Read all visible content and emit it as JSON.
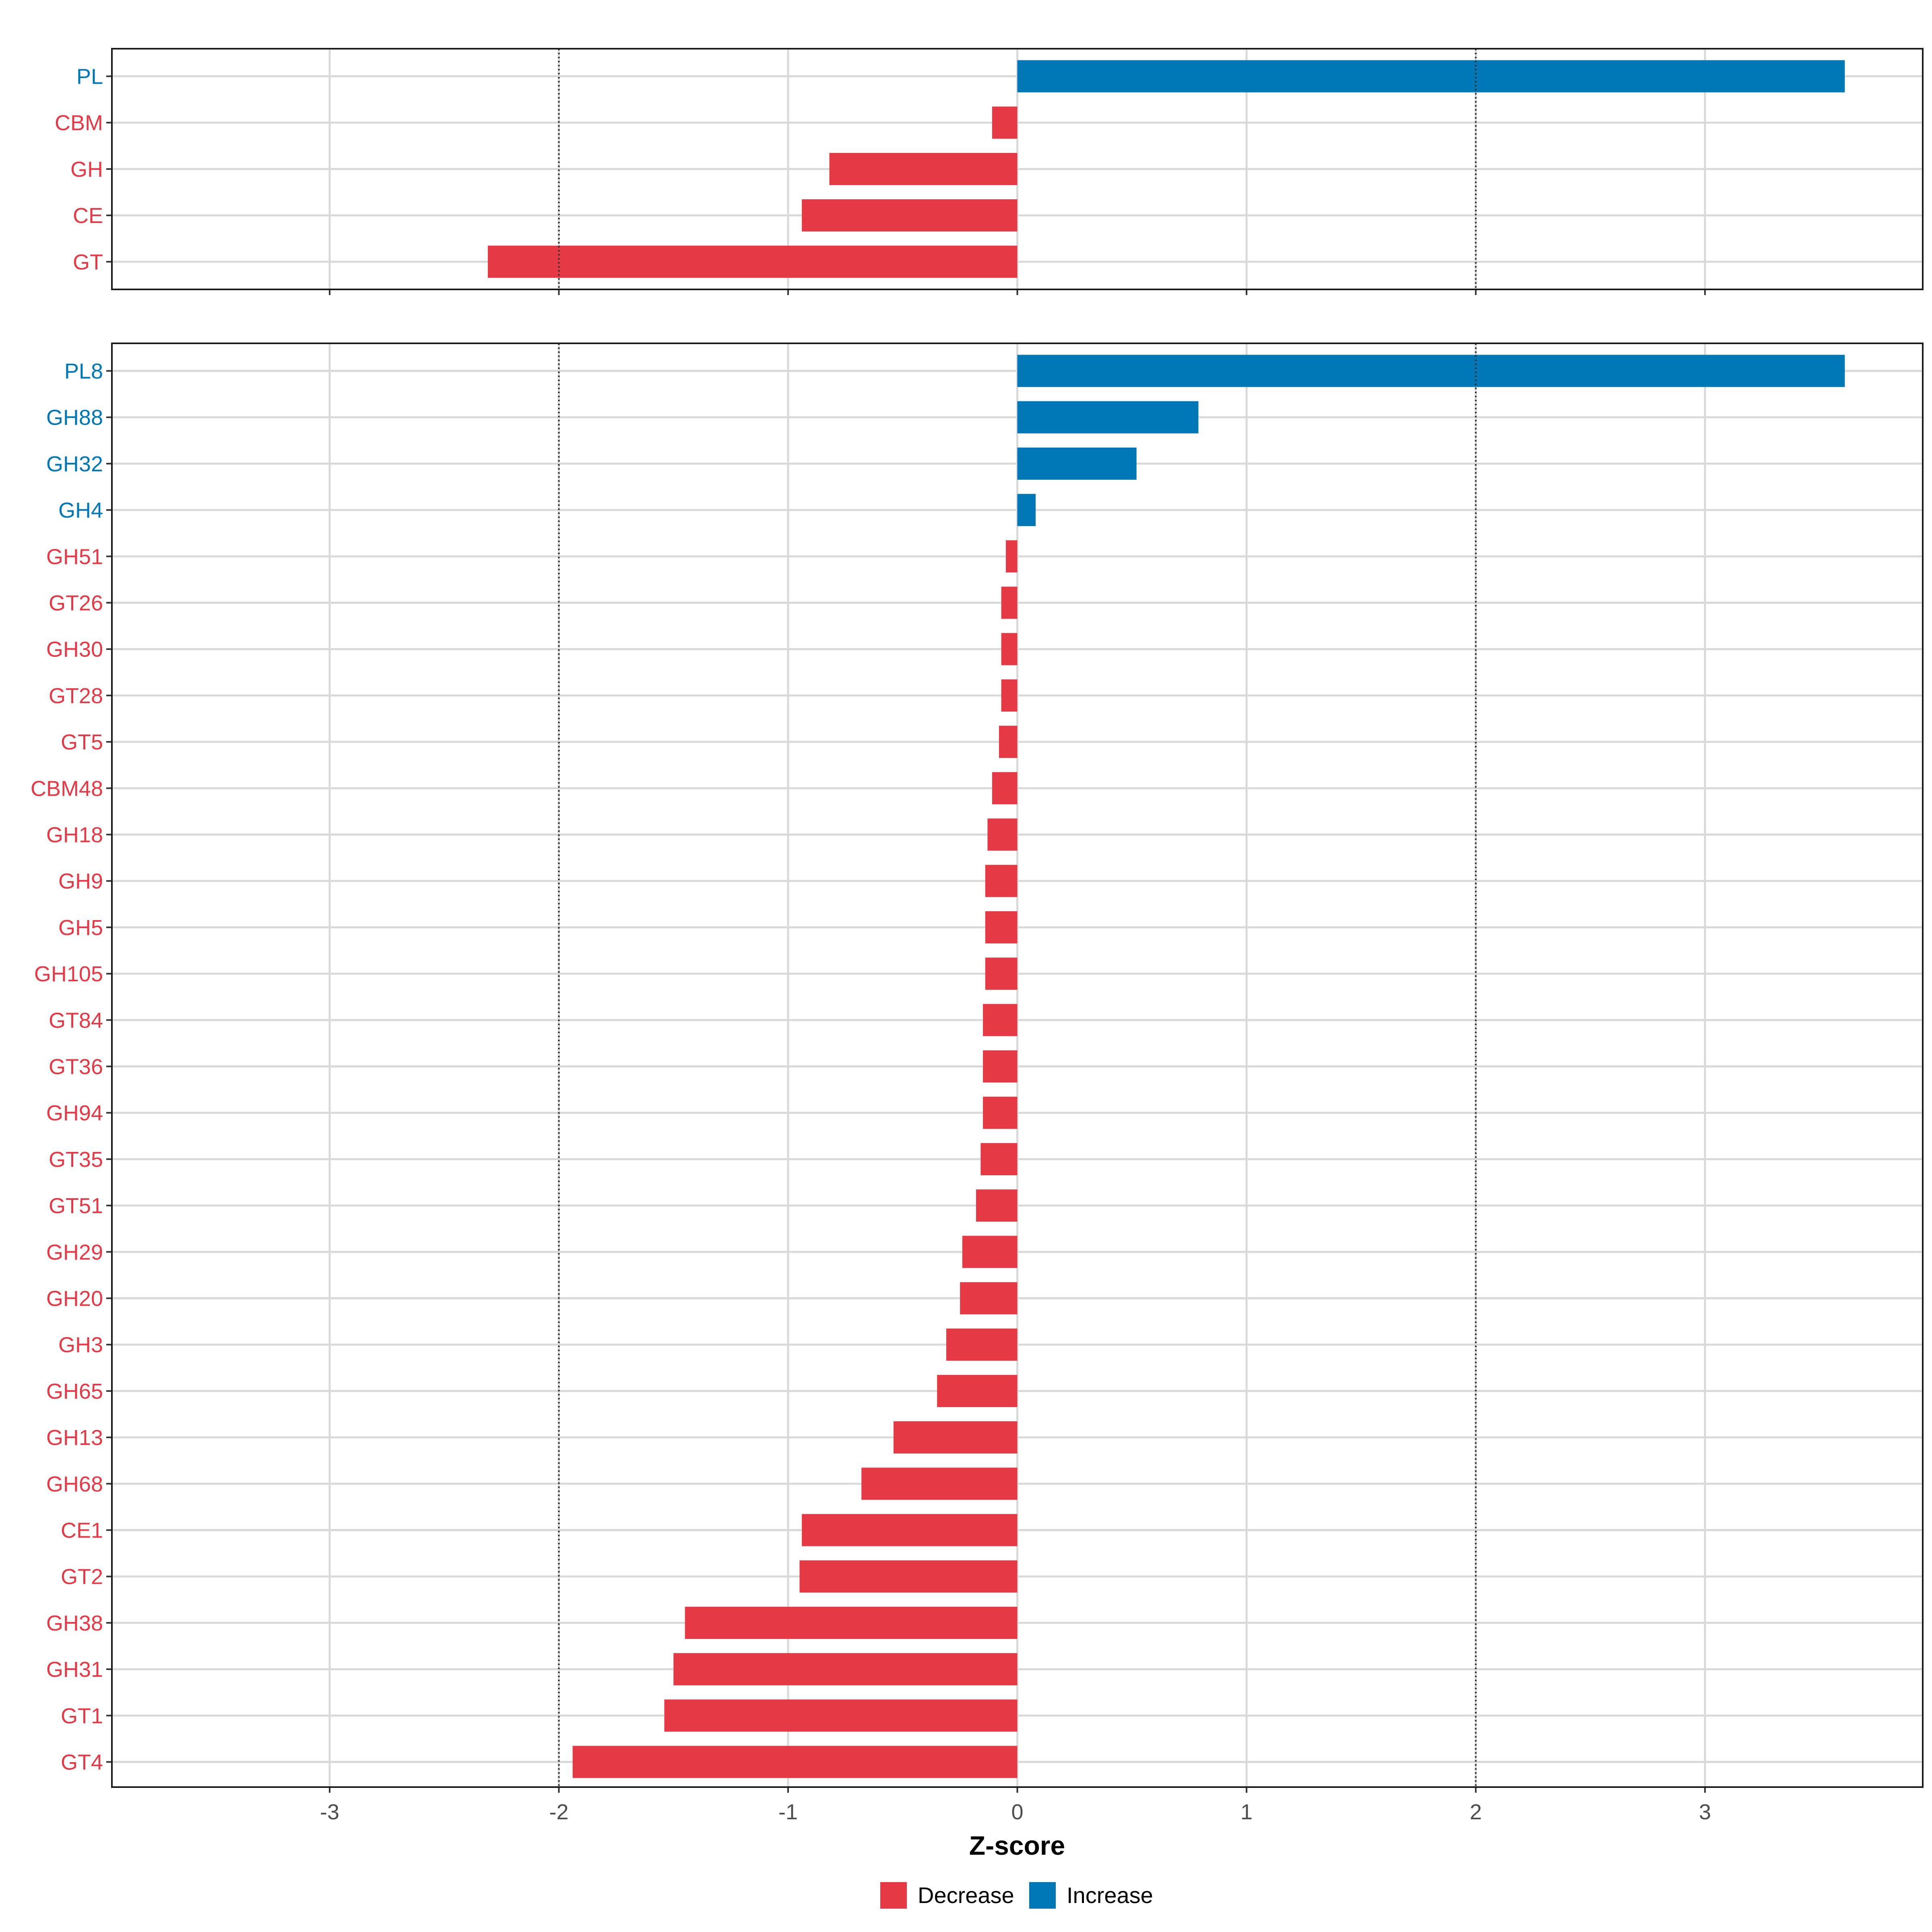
{
  "chart_data": {
    "type": "bar",
    "orientation": "horizontal",
    "xlabel": "Z-score",
    "xlim": [
      -3.95,
      3.95
    ],
    "x_ticks": [
      -3,
      -2,
      -1,
      0,
      1,
      2,
      3
    ],
    "x_tick_labels": [
      "-3",
      "-2",
      "-1",
      "0",
      "1",
      "2",
      "3"
    ],
    "reference_lines": [
      -2,
      2
    ],
    "grid": true,
    "legend_position": "bottom",
    "legend": [
      {
        "name": "Decrease",
        "color": "#E63946"
      },
      {
        "name": "Increase",
        "color": "#0077B6"
      }
    ],
    "colors": {
      "Decrease": "#E63946",
      "Increase": "#0077B6"
    },
    "panels": [
      {
        "name": "top",
        "categories": [
          "PL",
          "CBM",
          "GH",
          "CE",
          "GT"
        ],
        "values": [
          3.61,
          -0.11,
          -0.82,
          -0.94,
          -2.31
        ],
        "groups": [
          "Increase",
          "Decrease",
          "Decrease",
          "Decrease",
          "Decrease"
        ]
      },
      {
        "name": "bottom",
        "categories": [
          "PL8",
          "GH88",
          "GH32",
          "GH4",
          "GH51",
          "GT26",
          "GH30",
          "GT28",
          "GT5",
          "CBM48",
          "GH18",
          "GH9",
          "GH5",
          "GH105",
          "GT84",
          "GT36",
          "GH94",
          "GT35",
          "GT51",
          "GH29",
          "GH20",
          "GH3",
          "GH65",
          "GH13",
          "GH68",
          "CE1",
          "GT2",
          "GH38",
          "GH31",
          "GT1",
          "GT4"
        ],
        "values": [
          3.61,
          0.79,
          0.52,
          0.08,
          -0.05,
          -0.07,
          -0.07,
          -0.07,
          -0.08,
          -0.11,
          -0.13,
          -0.14,
          -0.14,
          -0.14,
          -0.15,
          -0.15,
          -0.15,
          -0.16,
          -0.18,
          -0.24,
          -0.25,
          -0.31,
          -0.35,
          -0.54,
          -0.68,
          -0.94,
          -0.95,
          -1.45,
          -1.5,
          -1.54,
          -1.94
        ],
        "groups": [
          "Increase",
          "Increase",
          "Increase",
          "Increase",
          "Decrease",
          "Decrease",
          "Decrease",
          "Decrease",
          "Decrease",
          "Decrease",
          "Decrease",
          "Decrease",
          "Decrease",
          "Decrease",
          "Decrease",
          "Decrease",
          "Decrease",
          "Decrease",
          "Decrease",
          "Decrease",
          "Decrease",
          "Decrease",
          "Decrease",
          "Decrease",
          "Decrease",
          "Decrease",
          "Decrease",
          "Decrease",
          "Decrease",
          "Decrease",
          "Decrease"
        ]
      }
    ]
  }
}
